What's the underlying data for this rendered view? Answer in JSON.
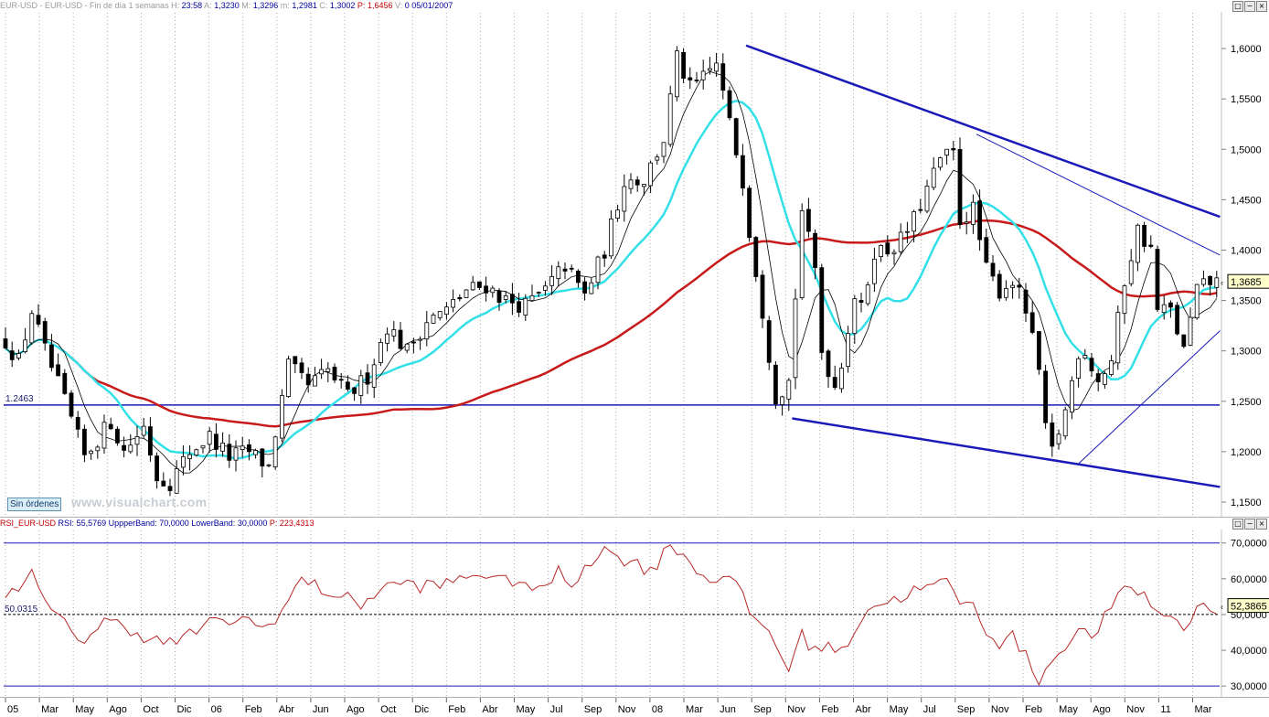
{
  "price_header": {
    "symbol": "EUR-USD - EUR-USD",
    "period": "Fin de día 1 semanas",
    "time_label": "H:",
    "time": "23:58",
    "open_label": "A:",
    "open": "1,3230",
    "high_label": "M:",
    "high": "1,3296",
    "low_label": "m:",
    "low": "1,2981",
    "close_label": "C:",
    "close": "1,3002",
    "p_label": "P:",
    "p": "1,6456",
    "v_label": "V:",
    "v": "0",
    "date": "05/01/2007"
  },
  "rsi_header": {
    "name": "RSI_EUR-USD",
    "rsi_label": "RSI:",
    "rsi": "55,5769",
    "upper_label": "UppperBand:",
    "upper": "70,0000",
    "lower_label": "LowerBand:",
    "lower": "30,0000",
    "p_label": "P:",
    "p": "223,4313"
  },
  "window_buttons": [
    "□",
    "−",
    "×"
  ],
  "orders_button": "Sin órdenes",
  "brand": "www.visualchart.com",
  "colors": {
    "candle": "#000000",
    "ma_short": "#000000",
    "ma_medium": "#33e0e8",
    "ma_long": "#c81a1a",
    "trendline": "#1a1ab8",
    "rsi_line": "#b82828",
    "band": "#1a1ab8"
  },
  "chart_data": [
    {
      "type": "candlestick",
      "title": "",
      "y_ticks": [
        "1,6000",
        "1,5500",
        "1,5000",
        "1,4500",
        "1,4000",
        "1,3500",
        "1,3000",
        "1,2500",
        "1,2000",
        "1,1500"
      ],
      "ylim": [
        1.14,
        1.63
      ],
      "x_ticks": [
        "05",
        "Mar",
        "May",
        "Ago",
        "Oct",
        "Dic",
        "06",
        "Feb",
        "Abr",
        "Jun",
        "Ago",
        "Oct",
        "Dic",
        "Feb",
        "Abr",
        "May",
        "Jul",
        "Sep",
        "Nov",
        "08",
        "Mar",
        "Jun",
        "Sep",
        "Nov",
        "Feb",
        "Abr",
        "May",
        "Jul",
        "Sep",
        "Nov",
        "Feb",
        "May",
        "Ago",
        "Nov",
        "11",
        "Mar"
      ],
      "last_price_label": "1,3685",
      "horizontal_level": {
        "label": "1.2463",
        "value": 1.2463
      },
      "close_anchors": [
        [
          0,
          1.31
        ],
        [
          2,
          1.29
        ],
        [
          4,
          1.34
        ],
        [
          6,
          1.3
        ],
        [
          9,
          1.25
        ],
        [
          12,
          1.195
        ],
        [
          16,
          1.23
        ],
        [
          18,
          1.2
        ],
        [
          21,
          1.225
        ],
        [
          23,
          1.175
        ],
        [
          25,
          1.17
        ],
        [
          28,
          1.2
        ],
        [
          31,
          1.215
        ],
        [
          34,
          1.195
        ],
        [
          37,
          1.2
        ],
        [
          40,
          1.185
        ],
        [
          43,
          1.285
        ],
        [
          46,
          1.265
        ],
        [
          49,
          1.28
        ],
        [
          52,
          1.255
        ],
        [
          55,
          1.275
        ],
        [
          58,
          1.325
        ],
        [
          61,
          1.3
        ],
        [
          64,
          1.33
        ],
        [
          67,
          1.34
        ],
        [
          70,
          1.36
        ],
        [
          73,
          1.365
        ],
        [
          76,
          1.35
        ],
        [
          79,
          1.345
        ],
        [
          82,
          1.36
        ],
        [
          85,
          1.385
        ],
        [
          88,
          1.355
        ],
        [
          91,
          1.4
        ],
        [
          94,
          1.47
        ],
        [
          97,
          1.47
        ],
        [
          100,
          1.51
        ],
        [
          102,
          1.59
        ],
        [
          104,
          1.56
        ],
        [
          106,
          1.57
        ],
        [
          108,
          1.585
        ],
        [
          110,
          1.525
        ],
        [
          112,
          1.47
        ],
        [
          113,
          1.42
        ],
        [
          115,
          1.34
        ],
        [
          117,
          1.255
        ],
        [
          119,
          1.27
        ],
        [
          121,
          1.44
        ],
        [
          123,
          1.38
        ],
        [
          124,
          1.3
        ],
        [
          126,
          1.265
        ],
        [
          127,
          1.29
        ],
        [
          129,
          1.355
        ],
        [
          130,
          1.34
        ],
        [
          132,
          1.4
        ],
        [
          134,
          1.4
        ],
        [
          136,
          1.41
        ],
        [
          138,
          1.43
        ],
        [
          140,
          1.46
        ],
        [
          142,
          1.49
        ],
        [
          144,
          1.495
        ],
        [
          145,
          1.43
        ],
        [
          147,
          1.44
        ],
        [
          149,
          1.38
        ],
        [
          151,
          1.36
        ],
        [
          153,
          1.37
        ],
        [
          155,
          1.34
        ],
        [
          157,
          1.28
        ],
        [
          158,
          1.22
        ],
        [
          159,
          1.2
        ],
        [
          161,
          1.24
        ],
        [
          163,
          1.3
        ],
        [
          164,
          1.3
        ],
        [
          166,
          1.27
        ],
        [
          168,
          1.29
        ],
        [
          170,
          1.37
        ],
        [
          172,
          1.42
        ],
        [
          174,
          1.4
        ],
        [
          175,
          1.34
        ],
        [
          177,
          1.34
        ],
        [
          179,
          1.3
        ],
        [
          181,
          1.36
        ],
        [
          183,
          1.368
        ]
      ],
      "series": [
        {
          "indicator": "candles"
        },
        {
          "indicator": "ma_short"
        },
        {
          "indicator": "ma_medium"
        },
        {
          "indicator": "ma_long"
        }
      ]
    },
    {
      "type": "line",
      "title": "",
      "y_ticks": [
        "70,0000",
        "60,0000",
        "50,0000",
        "40,0000",
        "30,0000"
      ],
      "ylim": [
        28,
        73
      ],
      "upper_band": 70,
      "lower_band": 30,
      "reference_level": {
        "label": "50.0315",
        "value": 50.0315
      },
      "last_value_label": "52,3865",
      "anchors": [
        [
          0,
          56
        ],
        [
          4,
          61
        ],
        [
          6,
          53
        ],
        [
          9,
          47
        ],
        [
          12,
          43
        ],
        [
          15,
          48
        ],
        [
          18,
          47
        ],
        [
          21,
          44
        ],
        [
          24,
          42
        ],
        [
          27,
          43
        ],
        [
          30,
          47
        ],
        [
          33,
          48
        ],
        [
          36,
          49
        ],
        [
          39,
          46
        ],
        [
          42,
          51
        ],
        [
          45,
          60
        ],
        [
          48,
          57
        ],
        [
          51,
          55
        ],
        [
          54,
          53
        ],
        [
          57,
          57
        ],
        [
          60,
          59
        ],
        [
          63,
          58
        ],
        [
          66,
          58
        ],
        [
          69,
          60
        ],
        [
          72,
          62
        ],
        [
          75,
          59
        ],
        [
          78,
          60
        ],
        [
          81,
          56
        ],
        [
          84,
          62
        ],
        [
          86,
          58
        ],
        [
          88,
          64
        ],
        [
          91,
          68
        ],
        [
          93,
          66
        ],
        [
          95,
          65
        ],
        [
          97,
          63
        ],
        [
          99,
          64
        ],
        [
          101,
          70
        ],
        [
          103,
          67
        ],
        [
          105,
          62
        ],
        [
          107,
          60
        ],
        [
          109,
          61
        ],
        [
          111,
          58
        ],
        [
          113,
          51
        ],
        [
          116,
          45
        ],
        [
          119,
          35
        ],
        [
          121,
          44
        ],
        [
          123,
          40
        ],
        [
          125,
          42
        ],
        [
          127,
          39
        ],
        [
          129,
          46
        ],
        [
          131,
          52
        ],
        [
          133,
          53
        ],
        [
          135,
          54
        ],
        [
          137,
          56
        ],
        [
          139,
          57
        ],
        [
          141,
          58
        ],
        [
          143,
          59
        ],
        [
          145,
          54
        ],
        [
          147,
          52
        ],
        [
          149,
          46
        ],
        [
          151,
          42
        ],
        [
          153,
          44
        ],
        [
          155,
          38
        ],
        [
          157,
          32
        ],
        [
          159,
          37
        ],
        [
          161,
          42
        ],
        [
          163,
          45
        ],
        [
          165,
          44
        ],
        [
          167,
          49
        ],
        [
          169,
          55
        ],
        [
          171,
          57
        ],
        [
          173,
          56
        ],
        [
          175,
          50
        ],
        [
          177,
          50
        ],
        [
          179,
          46
        ],
        [
          181,
          52
        ],
        [
          183,
          52
        ]
      ]
    }
  ]
}
